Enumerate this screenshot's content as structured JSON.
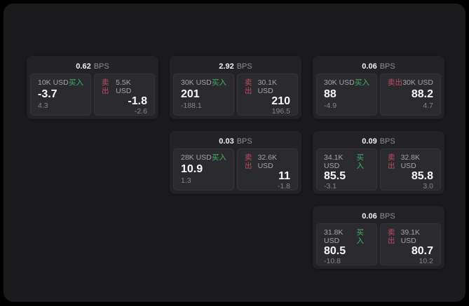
{
  "labels": {
    "bps_unit": "BPS",
    "buy": "买入",
    "sell": "卖出"
  },
  "colors": {
    "background": "#1b1b1d",
    "card": "#232327",
    "panel": "#2b2b2f",
    "buy_green": "#42b46a",
    "sell_red": "#bd4d63",
    "value_white": "#fafafa",
    "muted_gray": "#a4a4ab"
  },
  "columns": [
    {
      "cards": [
        {
          "bps": "0.62",
          "buy": {
            "size": "10K USD",
            "value": "-3.7",
            "sub": "4.3"
          },
          "sell": {
            "size": "5.5K USD",
            "value": "-1.8",
            "sub": "-2.6"
          }
        }
      ]
    },
    {
      "cards": [
        {
          "bps": "2.92",
          "buy": {
            "size": "30K USD",
            "value": "201",
            "sub": "-188.1"
          },
          "sell": {
            "size": "30.1K USD",
            "value": "210",
            "sub": "196.5"
          }
        },
        {
          "bps": "0.03",
          "buy": {
            "size": "28K USD",
            "value": "10.9",
            "sub": "1.3"
          },
          "sell": {
            "size": "32.6K USD",
            "value": "11",
            "sub": "-1.8"
          }
        }
      ]
    },
    {
      "cards": [
        {
          "bps": "0.06",
          "buy": {
            "size": "30K USD",
            "value": "88",
            "sub": "-4.9"
          },
          "sell": {
            "size": "30K USD",
            "value": "88.2",
            "sub": "4.7"
          }
        },
        {
          "bps": "0.09",
          "buy": {
            "size": "34.1K USD",
            "value": "85.5",
            "sub": "-3.1"
          },
          "sell": {
            "size": "32.8K USD",
            "value": "85.8",
            "sub": "3.0"
          }
        },
        {
          "bps": "0.06",
          "buy": {
            "size": "31.8K USD",
            "value": "80.5",
            "sub": "-10.8"
          },
          "sell": {
            "size": "39.1K USD",
            "value": "80.7",
            "sub": "10.2"
          }
        }
      ]
    }
  ]
}
